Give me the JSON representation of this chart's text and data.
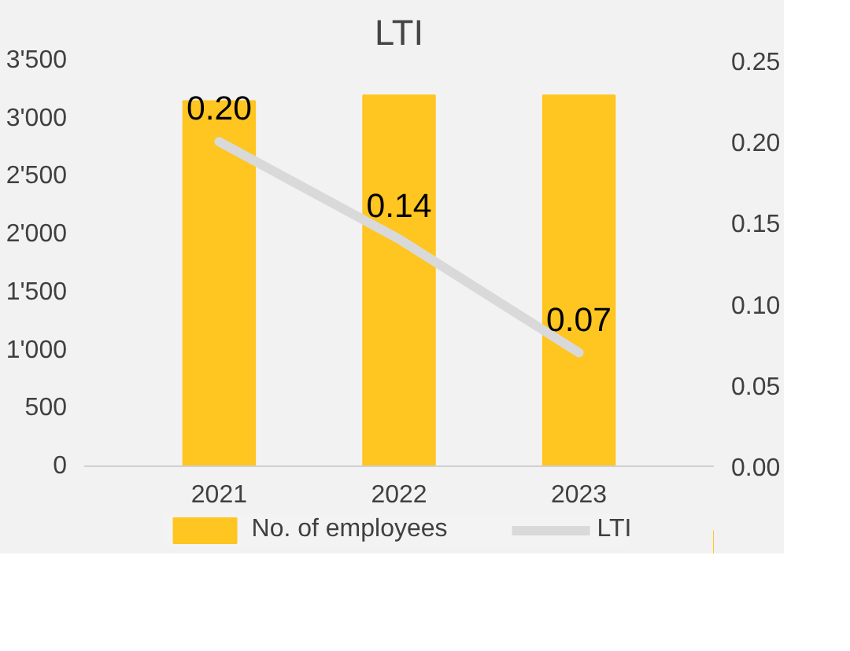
{
  "chart_data": {
    "type": "bar",
    "title": "LTI",
    "categories": [
      "2021",
      "2022",
      "2023"
    ],
    "series": [
      {
        "name": "No. of employees",
        "color": "#ffc520",
        "values": [
          3150,
          3200,
          3200
        ]
      },
      {
        "name": "LTI",
        "type": "line",
        "axis": "y2",
        "color": "#d9d9d9",
        "values": [
          0.2,
          0.14,
          0.07
        ],
        "value_labels": [
          "0.20",
          "0.14",
          "0.07"
        ]
      }
    ],
    "ylim": [
      0,
      3500
    ],
    "yticks": [
      0,
      500,
      {
        "value": 1000,
        "label": "1'000"
      },
      {
        "value": 1500,
        "label": "1'500"
      },
      {
        "value": 2000,
        "label": "2'000"
      },
      {
        "value": 2500,
        "label": "2'500"
      },
      {
        "value": 3000,
        "label": "3'000"
      },
      {
        "value": 3500,
        "label": "3'500"
      }
    ],
    "y2lim": [
      0,
      0.25
    ],
    "y2ticks": [
      {
        "value": 0,
        "label": "0.00"
      },
      {
        "value": 0.05,
        "label": "0.05"
      },
      {
        "value": 0.1,
        "label": "0.10"
      },
      {
        "value": 0.15,
        "label": "0.15"
      },
      {
        "value": 0.2,
        "label": "0.20"
      },
      {
        "value": 0.25,
        "label": "0.25"
      }
    ],
    "grid": false,
    "legend": "bottom"
  }
}
